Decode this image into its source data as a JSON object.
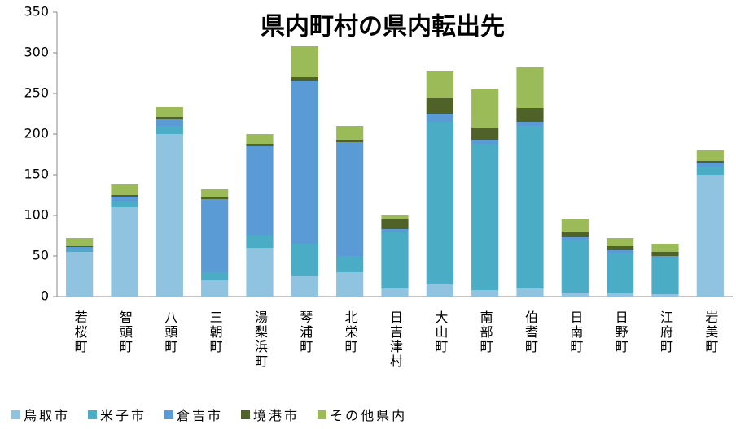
{
  "chart_data": {
    "type": "stacked_bar",
    "title": "県内町村の県内転出先",
    "categories": [
      "若桜町",
      "智頭町",
      "八頭町",
      "三朝町",
      "湯梨浜町",
      "琴浦町",
      "北栄町",
      "日吉津村",
      "大山町",
      "南部町",
      "伯耆町",
      "日南町",
      "日野町",
      "江府町",
      "岩美町"
    ],
    "series": [
      {
        "name": "鳥取市",
        "color": "#8fc3e0",
        "values": [
          55,
          110,
          200,
          20,
          60,
          25,
          30,
          10,
          15,
          8,
          10,
          5,
          4,
          3,
          150
        ]
      },
      {
        "name": "米子市",
        "color": "#4bacc6",
        "values": [
          3,
          8,
          10,
          10,
          15,
          40,
          20,
          70,
          200,
          180,
          200,
          65,
          50,
          45,
          10
        ]
      },
      {
        "name": "倉吉市",
        "color": "#5b9bd5",
        "values": [
          3,
          5,
          8,
          90,
          110,
          200,
          140,
          3,
          10,
          5,
          5,
          3,
          3,
          2,
          5
        ]
      },
      {
        "name": "境港市",
        "color": "#4f6228",
        "values": [
          1,
          2,
          3,
          2,
          3,
          5,
          3,
          12,
          20,
          15,
          17,
          7,
          5,
          5,
          2
        ]
      },
      {
        "name": "その他県内",
        "color": "#9bbb59",
        "values": [
          10,
          13,
          12,
          10,
          12,
          38,
          17,
          5,
          33,
          47,
          50,
          15,
          10,
          10,
          13
        ]
      }
    ],
    "ylim": [
      0,
      350
    ],
    "yticks": [
      0,
      50,
      100,
      150,
      200,
      250,
      300,
      350
    ]
  }
}
